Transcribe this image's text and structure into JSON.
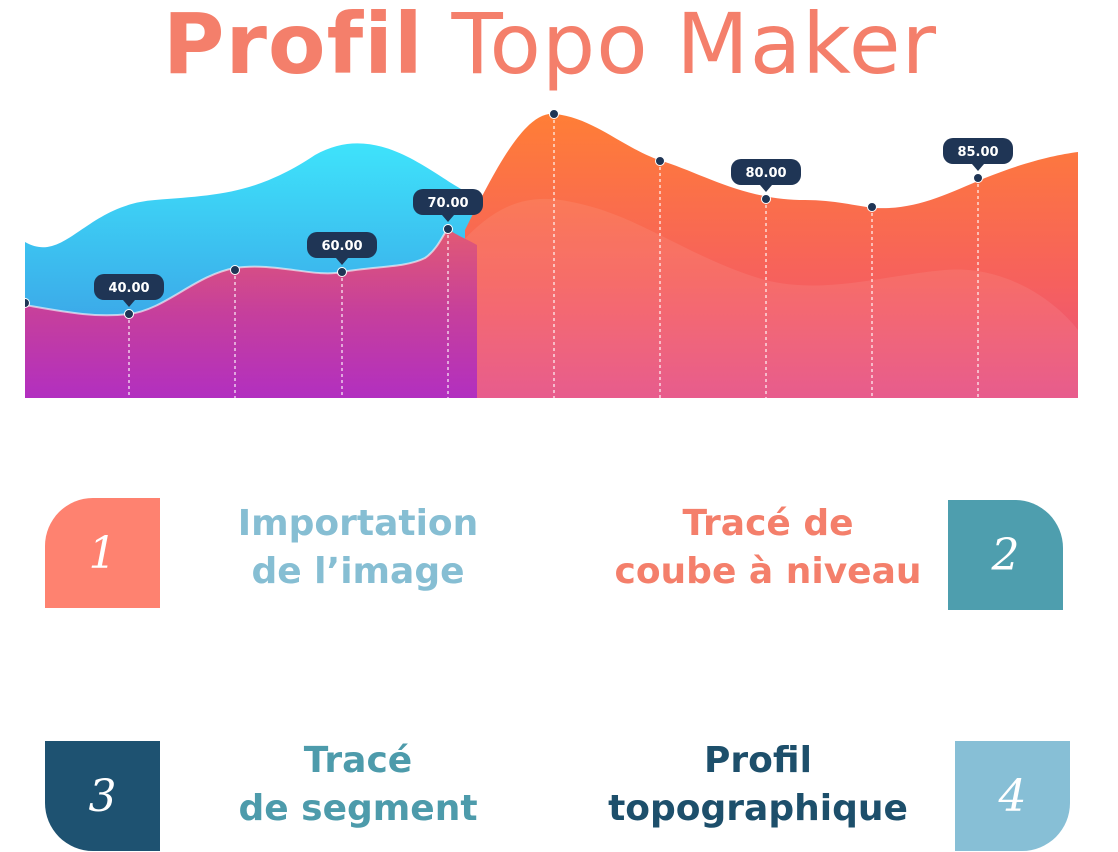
{
  "header": {
    "title_bold": "Profil",
    "title_light": "Topo Maker"
  },
  "chart_data": {
    "type": "area",
    "point_labels": [
      {
        "label": "40.00"
      },
      {
        "label": "60.00"
      },
      {
        "label": "70.00"
      },
      {
        "label": "80.00"
      },
      {
        "label": "85.00"
      }
    ]
  },
  "steps": [
    {
      "number": "1",
      "line1": "Importation",
      "line2": "de l’image"
    },
    {
      "number": "2",
      "line1": "Tracé de",
      "line2": "coube à niveau"
    },
    {
      "number": "3",
      "line1": "Tracé",
      "line2": "de segment"
    },
    {
      "number": "4",
      "line1": "Profil",
      "line2": "topographique"
    }
  ],
  "colors": {
    "title": "#f47f6b",
    "step1": "#fe8270",
    "step2": "#4e9eae",
    "step3": "#1e5271",
    "step4": "#87bfd6",
    "label_bubble": "#1f3555"
  }
}
